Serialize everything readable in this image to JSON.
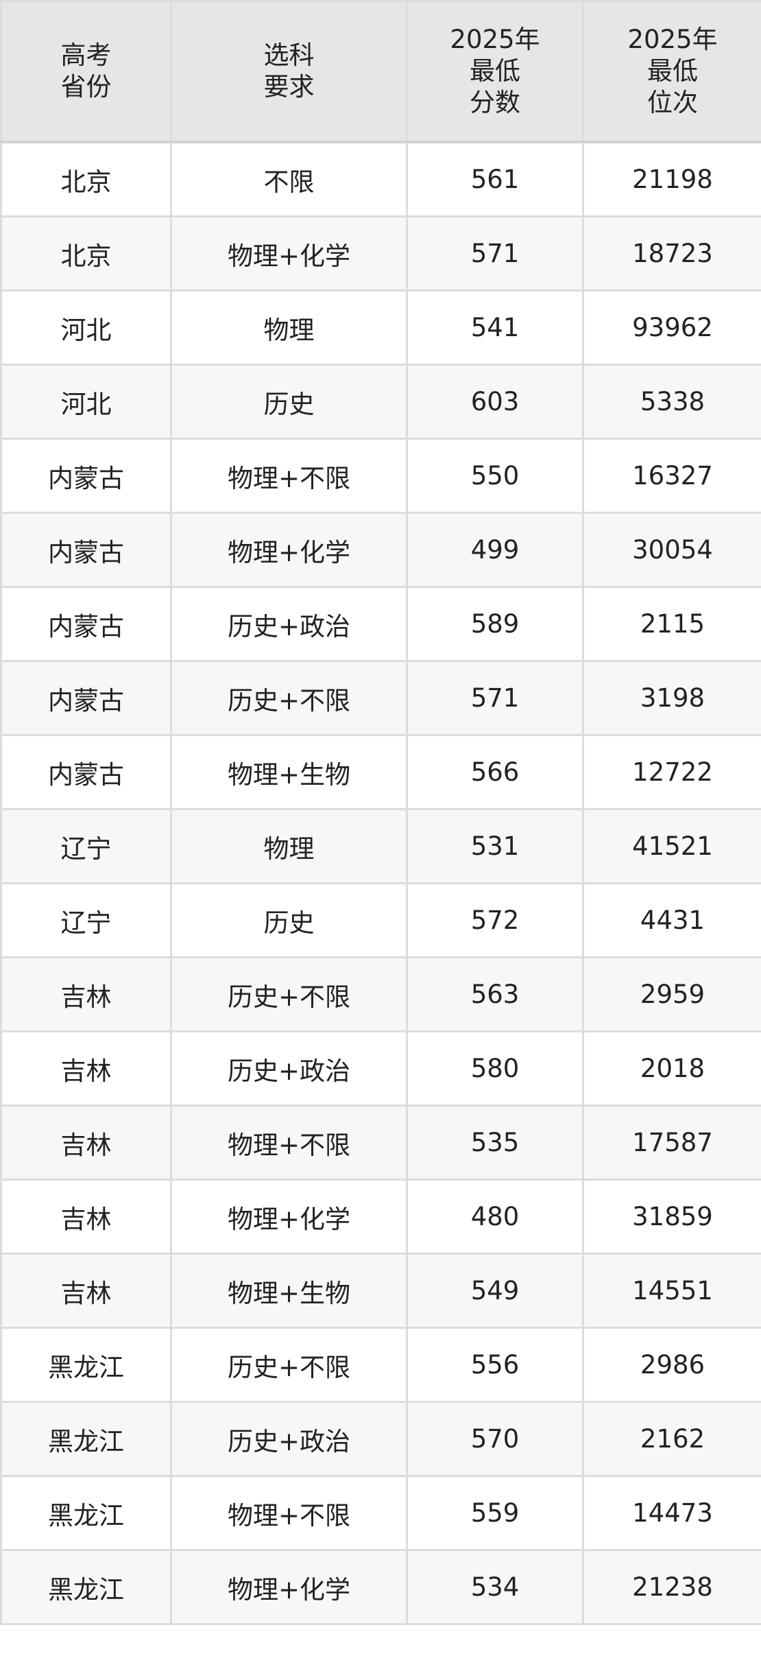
{
  "table": {
    "headers": [
      [
        "高考",
        "省份"
      ],
      [
        "选科",
        "要求"
      ],
      [
        "2025年",
        "最低",
        "分数"
      ],
      [
        "2025年",
        "最低",
        "位次"
      ]
    ],
    "rows": [
      [
        "北京",
        "不限",
        "561",
        "21198"
      ],
      [
        "北京",
        "物理+化学",
        "571",
        "18723"
      ],
      [
        "河北",
        "物理",
        "541",
        "93962"
      ],
      [
        "河北",
        "历史",
        "603",
        "5338"
      ],
      [
        "内蒙古",
        "物理+不限",
        "550",
        "16327"
      ],
      [
        "内蒙古",
        "物理+化学",
        "499",
        "30054"
      ],
      [
        "内蒙古",
        "历史+政治",
        "589",
        "2115"
      ],
      [
        "内蒙古",
        "历史+不限",
        "571",
        "3198"
      ],
      [
        "内蒙古",
        "物理+生物",
        "566",
        "12722"
      ],
      [
        "辽宁",
        "物理",
        "531",
        "41521"
      ],
      [
        "辽宁",
        "历史",
        "572",
        "4431"
      ],
      [
        "吉林",
        "历史+不限",
        "563",
        "2959"
      ],
      [
        "吉林",
        "历史+政治",
        "580",
        "2018"
      ],
      [
        "吉林",
        "物理+不限",
        "535",
        "17587"
      ],
      [
        "吉林",
        "物理+化学",
        "480",
        "31859"
      ],
      [
        "吉林",
        "物理+生物",
        "549",
        "14551"
      ],
      [
        "黑龙江",
        "历史+不限",
        "556",
        "2986"
      ],
      [
        "黑龙江",
        "历史+政治",
        "570",
        "2162"
      ],
      [
        "黑龙江",
        "物理+不限",
        "559",
        "14473"
      ],
      [
        "黑龙江",
        "物理+化学",
        "534",
        "21238"
      ]
    ]
  }
}
